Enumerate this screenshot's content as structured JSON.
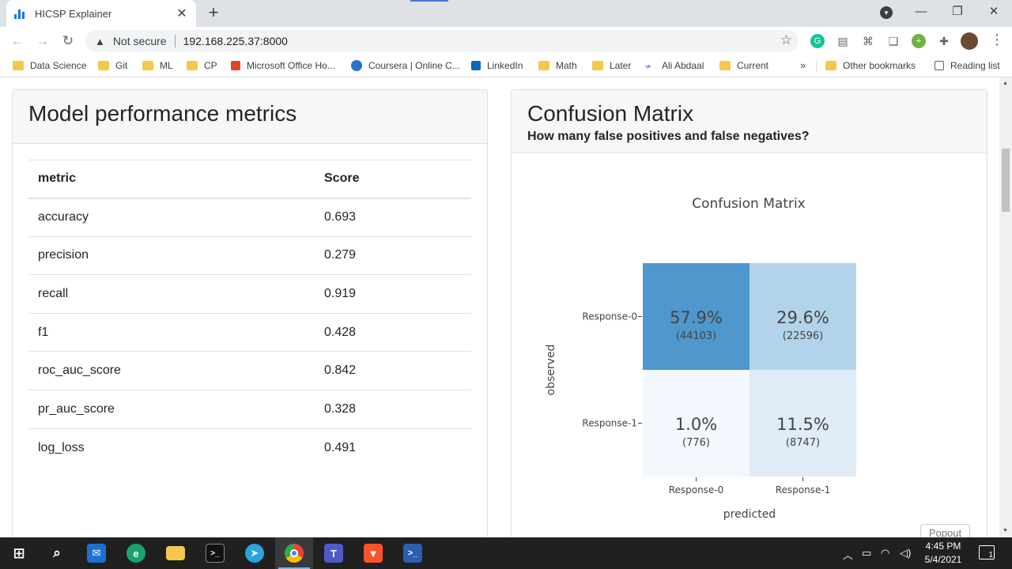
{
  "browser": {
    "tab_title": "HICSP Explainer",
    "address_security": "Not secure",
    "url": "192.168.225.37:8000",
    "bookmarks": [
      "Data Science",
      "Git",
      "ML",
      "CP",
      "Microsoft Office Ho...",
      "Coursera | Online C...",
      "LinkedIn",
      "Math",
      "Later",
      "Ali Abdaal",
      "Current"
    ],
    "more_bookmarks": "»",
    "other_bookmarks": "Other bookmarks",
    "reading_list": "Reading list"
  },
  "metrics_card": {
    "title": "Model performance metrics",
    "columns": [
      "metric",
      "Score"
    ],
    "rows": [
      [
        "accuracy",
        "0.693"
      ],
      [
        "precision",
        "0.279"
      ],
      [
        "recall",
        "0.919"
      ],
      [
        "f1",
        "0.428"
      ],
      [
        "roc_auc_score",
        "0.842"
      ],
      [
        "pr_auc_score",
        "0.328"
      ],
      [
        "log_loss",
        "0.491"
      ]
    ]
  },
  "confusion_card": {
    "title": "Confusion Matrix",
    "subtitle": "How many false positives and false negatives?",
    "popout_label": "Popout"
  },
  "chart_data": {
    "type": "heatmap",
    "title": "Confusion Matrix",
    "xlabel": "predicted",
    "ylabel": "observed",
    "x_categories": [
      "Response-0",
      "Response-1"
    ],
    "y_categories": [
      "Response-0",
      "Response-1"
    ],
    "cells": [
      [
        {
          "percent": "57.9%",
          "count": "(44103)",
          "value": 44103
        },
        {
          "percent": "29.6%",
          "count": "(22596)",
          "value": 22596
        }
      ],
      [
        {
          "percent": "1.0%",
          "count": "(776)",
          "value": 776
        },
        {
          "percent": "11.5%",
          "count": "(8747)",
          "value": 8747
        }
      ]
    ],
    "colors": [
      "#f3f8fe",
      "#dfebf7",
      "#b2d3ea",
      "#4f97cc"
    ]
  },
  "taskbar": {
    "time": "4:45 PM",
    "date": "5/4/2021",
    "notification_count": "1"
  }
}
